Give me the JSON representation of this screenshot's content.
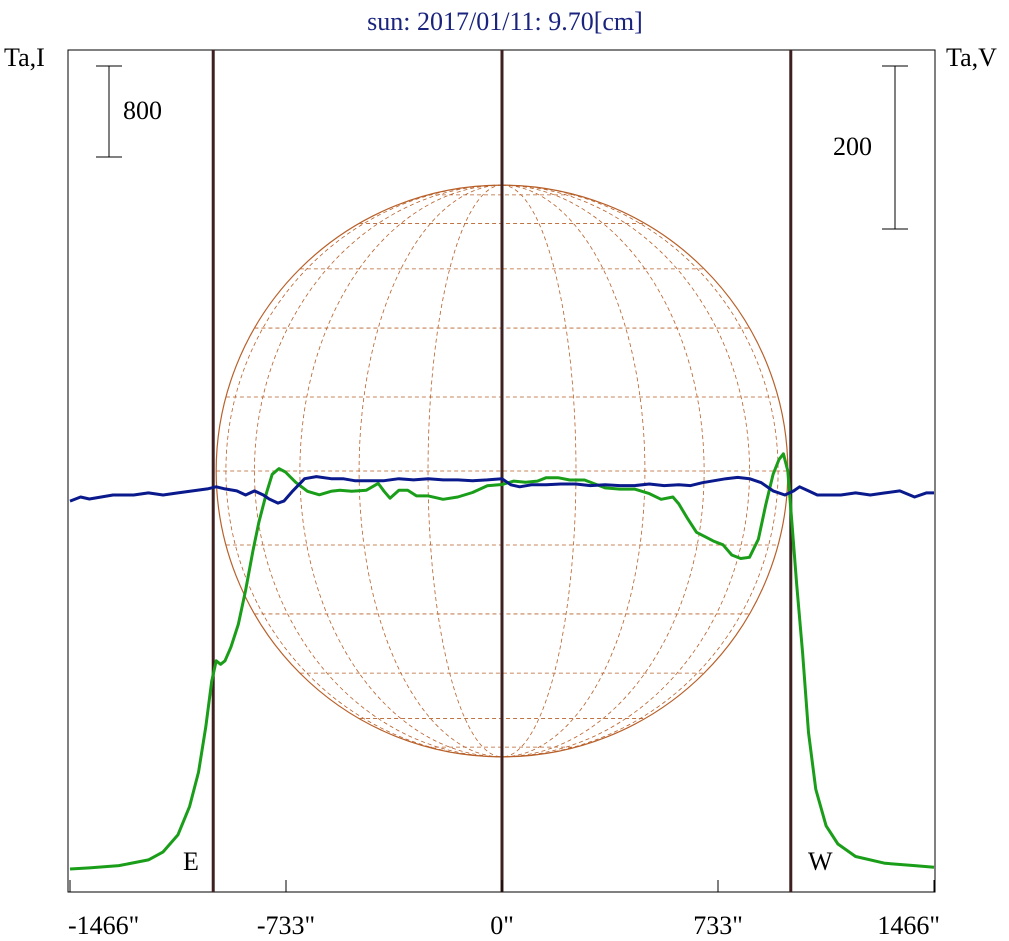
{
  "chart_data": {
    "type": "line",
    "title": "sun: 2017/01/11: 9.70[cm]",
    "left_axis_label": "Ta,I",
    "right_axis_label": "Ta,V",
    "x_ticks": [
      {
        "value": -1466,
        "label": "-1466\""
      },
      {
        "value": -733,
        "label": "-733\""
      },
      {
        "value": 0,
        "label": "0\""
      },
      {
        "value": 733,
        "label": "733\""
      },
      {
        "value": 1466,
        "label": "1466\""
      }
    ],
    "xlim": [
      -1466,
      1466
    ],
    "scale_bars": {
      "left": {
        "label": "800",
        "value": 800
      },
      "right": {
        "label": "200",
        "value": 200
      }
    },
    "limb_markers": {
      "east": {
        "x": -980,
        "label": "E"
      },
      "center": {
        "x": 0
      },
      "west": {
        "x": 980,
        "label": "W"
      }
    },
    "solar_disk": {
      "radius_arcsec": 970,
      "grid": "heliographic"
    },
    "colors": {
      "title": "#1a237e",
      "intensity": "#1a9e1a",
      "polarization": "#0a1a8c",
      "limb_lines": "#3e2020",
      "disk": "#b8602a",
      "frame": "#000000"
    },
    "series": [
      {
        "key": "intensity",
        "axis": "left",
        "points": [
          [
            -1466,
            0
          ],
          [
            -1400,
            10
          ],
          [
            -1300,
            30
          ],
          [
            -1200,
            80
          ],
          [
            -1150,
            150
          ],
          [
            -1100,
            300
          ],
          [
            -1060,
            550
          ],
          [
            -1030,
            850
          ],
          [
            -1005,
            1250
          ],
          [
            -985,
            1650
          ],
          [
            -970,
            1830
          ],
          [
            -955,
            1800
          ],
          [
            -940,
            1830
          ],
          [
            -920,
            1950
          ],
          [
            -895,
            2150
          ],
          [
            -870,
            2450
          ],
          [
            -845,
            2800
          ],
          [
            -825,
            3050
          ],
          [
            -800,
            3300
          ],
          [
            -780,
            3470
          ],
          [
            -757,
            3520
          ],
          [
            -735,
            3490
          ],
          [
            -700,
            3400
          ],
          [
            -660,
            3320
          ],
          [
            -620,
            3290
          ],
          [
            -580,
            3320
          ],
          [
            -550,
            3330
          ],
          [
            -510,
            3320
          ],
          [
            -460,
            3330
          ],
          [
            -420,
            3390
          ],
          [
            -400,
            3320
          ],
          [
            -380,
            3260
          ],
          [
            -350,
            3330
          ],
          [
            -320,
            3330
          ],
          [
            -290,
            3280
          ],
          [
            -250,
            3280
          ],
          [
            -200,
            3250
          ],
          [
            -150,
            3270
          ],
          [
            -100,
            3310
          ],
          [
            -50,
            3370
          ],
          [
            0,
            3380
          ],
          [
            40,
            3410
          ],
          [
            80,
            3400
          ],
          [
            120,
            3410
          ],
          [
            150,
            3440
          ],
          [
            190,
            3440
          ],
          [
            230,
            3420
          ],
          [
            280,
            3420
          ],
          [
            310,
            3390
          ],
          [
            350,
            3350
          ],
          [
            400,
            3340
          ],
          [
            450,
            3340
          ],
          [
            500,
            3300
          ],
          [
            540,
            3250
          ],
          [
            580,
            3270
          ],
          [
            600,
            3210
          ],
          [
            630,
            3080
          ],
          [
            660,
            2960
          ],
          [
            690,
            2920
          ],
          [
            720,
            2880
          ],
          [
            750,
            2850
          ],
          [
            780,
            2760
          ],
          [
            810,
            2730
          ],
          [
            840,
            2740
          ],
          [
            870,
            2900
          ],
          [
            895,
            3200
          ],
          [
            920,
            3470
          ],
          [
            940,
            3600
          ],
          [
            955,
            3650
          ],
          [
            970,
            3500
          ],
          [
            985,
            3000
          ],
          [
            1000,
            2500
          ],
          [
            1020,
            1900
          ],
          [
            1040,
            1200
          ],
          [
            1065,
            700
          ],
          [
            1100,
            380
          ],
          [
            1140,
            220
          ],
          [
            1200,
            110
          ],
          [
            1300,
            50
          ],
          [
            1400,
            30
          ],
          [
            1466,
            15
          ]
        ]
      },
      {
        "key": "polarization",
        "axis": "right",
        "points": [
          [
            -1466,
            -10
          ],
          [
            -1430,
            0
          ],
          [
            -1400,
            -5
          ],
          [
            -1360,
            0
          ],
          [
            -1320,
            5
          ],
          [
            -1250,
            5
          ],
          [
            -1200,
            10
          ],
          [
            -1150,
            5
          ],
          [
            -1100,
            10
          ],
          [
            -1050,
            15
          ],
          [
            -1000,
            20
          ],
          [
            -970,
            25
          ],
          [
            -940,
            20
          ],
          [
            -900,
            15
          ],
          [
            -870,
            5
          ],
          [
            -840,
            15
          ],
          [
            -810,
            5
          ],
          [
            -790,
            -5
          ],
          [
            -760,
            -15
          ],
          [
            -740,
            -10
          ],
          [
            -710,
            15
          ],
          [
            -670,
            45
          ],
          [
            -630,
            50
          ],
          [
            -580,
            45
          ],
          [
            -540,
            45
          ],
          [
            -500,
            40
          ],
          [
            -450,
            40
          ],
          [
            -400,
            40
          ],
          [
            -350,
            45
          ],
          [
            -300,
            42
          ],
          [
            -250,
            45
          ],
          [
            -200,
            42
          ],
          [
            -150,
            42
          ],
          [
            -100,
            40
          ],
          [
            -50,
            42
          ],
          [
            0,
            45
          ],
          [
            30,
            30
          ],
          [
            60,
            25
          ],
          [
            100,
            30
          ],
          [
            150,
            30
          ],
          [
            200,
            32
          ],
          [
            250,
            32
          ],
          [
            300,
            28
          ],
          [
            350,
            30
          ],
          [
            400,
            28
          ],
          [
            450,
            28
          ],
          [
            500,
            32
          ],
          [
            550,
            28
          ],
          [
            600,
            30
          ],
          [
            640,
            28
          ],
          [
            680,
            35
          ],
          [
            720,
            40
          ],
          [
            760,
            45
          ],
          [
            800,
            48
          ],
          [
            840,
            45
          ],
          [
            880,
            35
          ],
          [
            920,
            15
          ],
          [
            960,
            5
          ],
          [
            990,
            15
          ],
          [
            1010,
            25
          ],
          [
            1040,
            15
          ],
          [
            1070,
            5
          ],
          [
            1100,
            5
          ],
          [
            1150,
            5
          ],
          [
            1200,
            10
          ],
          [
            1250,
            5
          ],
          [
            1300,
            10
          ],
          [
            1350,
            15
          ],
          [
            1400,
            0
          ],
          [
            1440,
            10
          ],
          [
            1466,
            10
          ]
        ]
      }
    ]
  }
}
